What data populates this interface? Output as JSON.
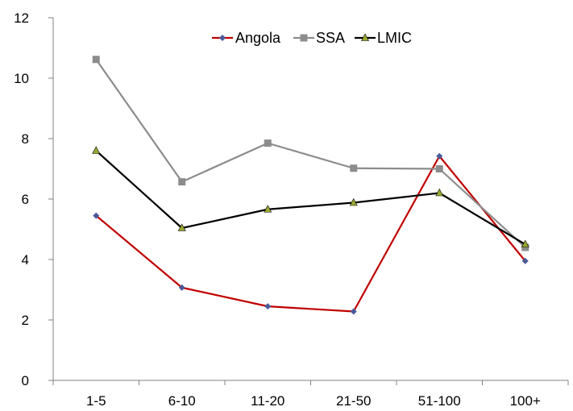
{
  "chart_data": {
    "type": "line",
    "title": "",
    "xlabel": "",
    "ylabel": "",
    "categories": [
      "1-5",
      "6-10",
      "11-20",
      "21-50",
      "51-100",
      "100+"
    ],
    "ylim": [
      0,
      12
    ],
    "yticks": [
      0,
      2,
      4,
      6,
      8,
      10,
      12
    ],
    "grid": false,
    "legend_position": "top-center",
    "series": [
      {
        "name": "Angola",
        "values": [
          5.45,
          3.07,
          2.45,
          2.28,
          7.42,
          3.95
        ],
        "color": "#c00000",
        "marker": "diamond",
        "marker_color": "#4a5a9a"
      },
      {
        "name": "SSA",
        "values": [
          10.62,
          6.57,
          7.85,
          7.02,
          7.0,
          4.4
        ],
        "color": "#8c8c8c",
        "marker": "square",
        "marker_color": "#8c8c8c"
      },
      {
        "name": "LMIC",
        "values": [
          7.6,
          5.04,
          5.66,
          5.88,
          6.2,
          4.5
        ],
        "color": "#000000",
        "marker": "triangle",
        "marker_color": "#9aa832"
      }
    ]
  }
}
